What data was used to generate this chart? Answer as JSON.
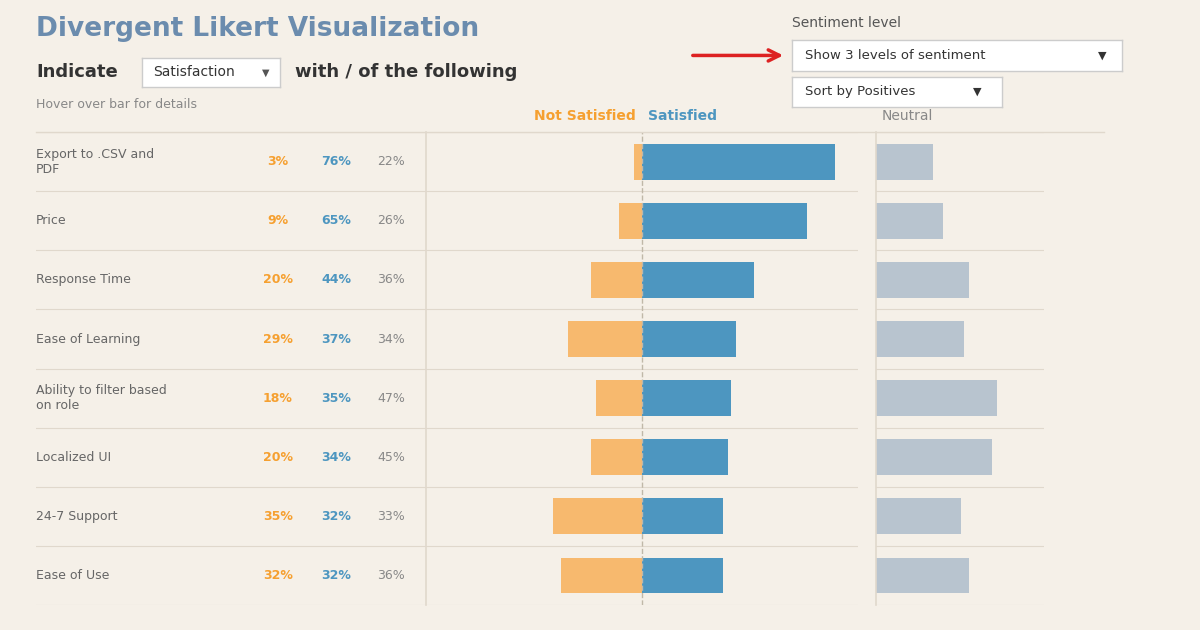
{
  "title": "Divergent Likert Visualization",
  "subtitle_dropdown": "Satisfaction",
  "subtitle_part2": "with / of the following",
  "subtitle_note": "Hover over bar for details",
  "bg_color": "#f5f0e8",
  "categories": [
    "Export to .CSV and\nPDF",
    "Price",
    "Response Time",
    "Ease of Learning",
    "Ability to filter based\non role",
    "Localized UI",
    "24-7 Support",
    "Ease of Use"
  ],
  "not_satisfied": [
    3,
    9,
    20,
    29,
    18,
    20,
    35,
    32
  ],
  "satisfied": [
    76,
    65,
    44,
    37,
    35,
    34,
    32,
    32
  ],
  "neutral": [
    22,
    26,
    36,
    34,
    47,
    45,
    33,
    36
  ],
  "color_not_satisfied": "#f7b96e",
  "color_satisfied": "#4d96c0",
  "color_neutral": "#b8c4cf",
  "color_not_satisfied_text": "#f5a030",
  "color_satisfied_text": "#4d96c0",
  "color_neutral_text": "#888888",
  "header_not_satisfied": "Not Satisfied",
  "header_satisfied": "Satisfied",
  "header_neutral": "Neutral",
  "sentiment_label": "Sentiment level",
  "dropdown1_text": "Show 3 levels of sentiment",
  "dropdown2_text": "Sort by Positives",
  "title_color": "#6b8cae",
  "text_color": "#666666",
  "label_color": "#888888",
  "separator_color": "#e0d8cc",
  "center_line_color": "#c0b8a8"
}
